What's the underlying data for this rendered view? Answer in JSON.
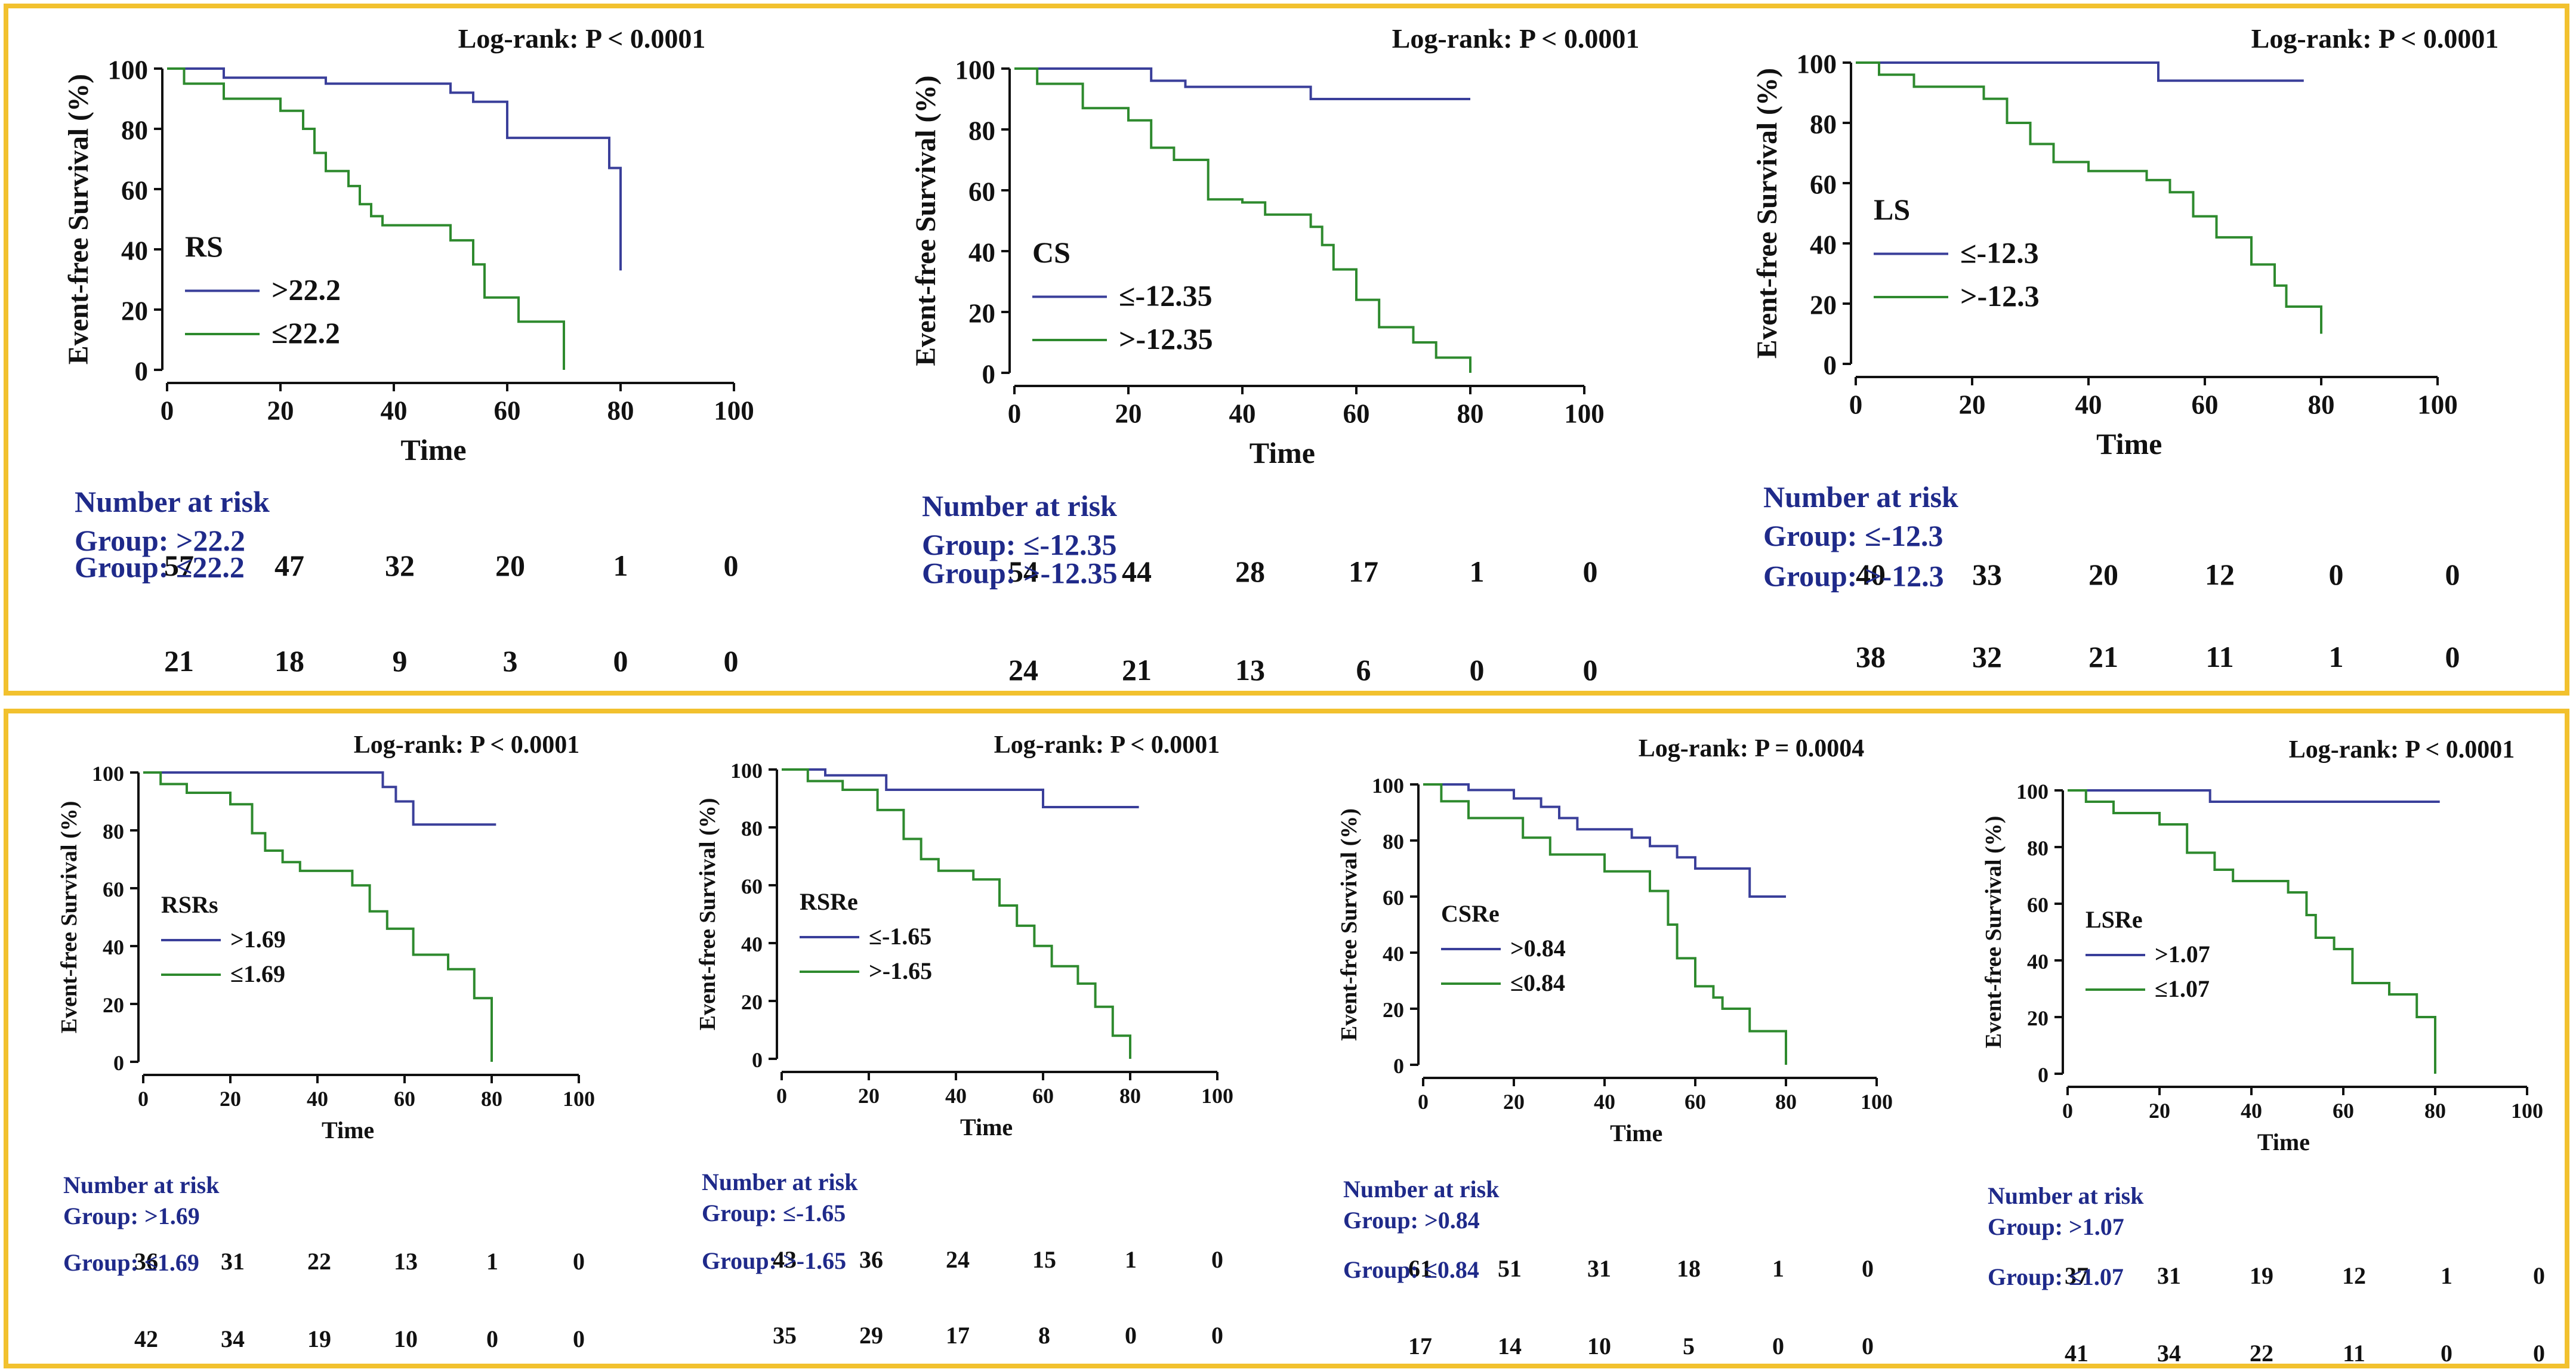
{
  "colors": {
    "frame": "#f2c12e",
    "series_high": "#3a3f9a",
    "series_low": "#2e8a2e",
    "group_text": "#1f2a8a"
  },
  "chart_data": [
    {
      "type": "line",
      "title": "Log-rank: P < 0.0001",
      "xlabel": "Time",
      "ylabel": "Event-free Survival (%)",
      "xlim": [
        0,
        100
      ],
      "ylim": [
        0,
        100
      ],
      "xticks": [
        0,
        20,
        40,
        60,
        80,
        100
      ],
      "yticks": [
        0,
        20,
        40,
        60,
        80,
        100
      ],
      "legend_title": "RS",
      "series": [
        {
          "name": ">22.2",
          "color": "#3a3f9a",
          "x": [
            0,
            10,
            28,
            50,
            54,
            60,
            70,
            78,
            80
          ],
          "y": [
            100,
            97,
            95,
            92,
            89,
            77,
            77,
            67,
            33
          ]
        },
        {
          "name": "≤22.2",
          "color": "#2e8a2e",
          "x": [
            0,
            3,
            10,
            20,
            24,
            26,
            28,
            32,
            34,
            36,
            38,
            50,
            54,
            56,
            62,
            70
          ],
          "y": [
            100,
            95,
            90,
            86,
            80,
            72,
            66,
            61,
            55,
            51,
            48,
            43,
            35,
            24,
            16,
            0
          ]
        }
      ],
      "risk": {
        "header": "Number at risk",
        "groups": [
          {
            "label": "Group: >22.2",
            "counts": [
              57,
              47,
              32,
              20,
              1,
              0
            ]
          },
          {
            "label": "Group: ≤22.2",
            "counts": [
              21,
              18,
              9,
              3,
              0,
              0
            ]
          }
        ]
      }
    },
    {
      "type": "line",
      "title": "Log-rank: P < 0.0001",
      "xlabel": "Time",
      "ylabel": "Event-free Survival (%)",
      "xlim": [
        0,
        100
      ],
      "ylim": [
        0,
        100
      ],
      "xticks": [
        0,
        20,
        40,
        60,
        80,
        100
      ],
      "yticks": [
        0,
        20,
        40,
        60,
        80,
        100
      ],
      "legend_title": "CS",
      "series": [
        {
          "name": "≤-12.35",
          "color": "#3a3f9a",
          "x": [
            0,
            24,
            30,
            52,
            80
          ],
          "y": [
            100,
            96,
            94,
            90,
            90
          ]
        },
        {
          "name": ">-12.35",
          "color": "#2e8a2e",
          "x": [
            0,
            4,
            12,
            20,
            24,
            28,
            34,
            40,
            44,
            52,
            54,
            56,
            60,
            64,
            70,
            74,
            80
          ],
          "y": [
            100,
            95,
            87,
            83,
            74,
            70,
            57,
            56,
            52,
            48,
            42,
            34,
            24,
            15,
            10,
            5,
            0
          ]
        }
      ],
      "risk": {
        "header": "Number at risk",
        "groups": [
          {
            "label": "Group: ≤-12.35",
            "counts": [
              54,
              44,
              28,
              17,
              1,
              0
            ]
          },
          {
            "label": "Group: >-12.35",
            "counts": [
              24,
              21,
              13,
              6,
              0,
              0
            ]
          }
        ]
      }
    },
    {
      "type": "line",
      "title": "Log-rank: P < 0.0001",
      "xlabel": "Time",
      "ylabel": "Event-free Survival (%)",
      "xlim": [
        0,
        100
      ],
      "ylim": [
        0,
        100
      ],
      "xticks": [
        0,
        20,
        40,
        60,
        80,
        100
      ],
      "yticks": [
        0,
        20,
        40,
        60,
        80,
        100
      ],
      "legend_title": "LS",
      "series": [
        {
          "name": "≤-12.3",
          "color": "#3a3f9a",
          "x": [
            0,
            51,
            52,
            77
          ],
          "y": [
            100,
            100,
            94,
            94
          ]
        },
        {
          "name": ">-12.3",
          "color": "#2e8a2e",
          "x": [
            0,
            4,
            10,
            22,
            26,
            30,
            34,
            40,
            50,
            54,
            58,
            62,
            68,
            72,
            74,
            78,
            80
          ],
          "y": [
            100,
            96,
            92,
            88,
            80,
            73,
            67,
            64,
            61,
            57,
            49,
            42,
            33,
            26,
            19,
            19,
            10
          ]
        }
      ],
      "risk": {
        "header": "Number at risk",
        "groups": [
          {
            "label": "Group: ≤-12.3",
            "counts": [
              40,
              33,
              20,
              12,
              0,
              0
            ]
          },
          {
            "label": "Group: >-12.3",
            "counts": [
              38,
              32,
              21,
              11,
              1,
              0
            ]
          }
        ]
      }
    },
    {
      "type": "line",
      "title": "Log-rank: P < 0.0001",
      "xlabel": "Time",
      "ylabel": "Event-free Survival (%)",
      "xlim": [
        0,
        100
      ],
      "ylim": [
        0,
        100
      ],
      "xticks": [
        0,
        20,
        40,
        60,
        80,
        100
      ],
      "yticks": [
        0,
        20,
        40,
        60,
        80,
        100
      ],
      "legend_title": "RSRs",
      "series": [
        {
          "name": ">1.69",
          "color": "#3a3f9a",
          "x": [
            0,
            52,
            55,
            58,
            62,
            81
          ],
          "y": [
            100,
            100,
            95,
            90,
            82,
            82
          ]
        },
        {
          "name": "≤1.69",
          "color": "#2e8a2e",
          "x": [
            0,
            4,
            10,
            20,
            25,
            28,
            32,
            36,
            48,
            52,
            56,
            62,
            70,
            76,
            80
          ],
          "y": [
            100,
            96,
            93,
            89,
            79,
            73,
            69,
            66,
            61,
            52,
            46,
            37,
            32,
            22,
            0
          ]
        }
      ],
      "risk": {
        "header": "Number at risk",
        "groups": [
          {
            "label": "Group: >1.69",
            "counts": [
              36,
              31,
              22,
              13,
              1,
              0
            ]
          },
          {
            "label": "Group: ≤1.69",
            "counts": [
              42,
              34,
              19,
              10,
              0,
              0
            ]
          }
        ]
      }
    },
    {
      "type": "line",
      "title": "Log-rank: P < 0.0001",
      "xlabel": "Time",
      "ylabel": "Event-free Survival (%)",
      "xlim": [
        0,
        100
      ],
      "ylim": [
        0,
        100
      ],
      "xticks": [
        0,
        20,
        40,
        60,
        80,
        100
      ],
      "yticks": [
        0,
        20,
        40,
        60,
        80,
        100
      ],
      "legend_title": "RSRe",
      "series": [
        {
          "name": "≤-1.65",
          "color": "#3a3f9a",
          "x": [
            0,
            10,
            24,
            60,
            82
          ],
          "y": [
            100,
            98,
            93,
            87,
            87
          ]
        },
        {
          "name": ">-1.65",
          "color": "#2e8a2e",
          "x": [
            0,
            6,
            14,
            22,
            28,
            32,
            36,
            44,
            50,
            54,
            58,
            62,
            68,
            72,
            76,
            80
          ],
          "y": [
            100,
            96,
            93,
            86,
            76,
            69,
            65,
            62,
            53,
            46,
            39,
            32,
            26,
            18,
            8,
            0
          ]
        }
      ],
      "risk": {
        "header": "Number at risk",
        "groups": [
          {
            "label": "Group: ≤-1.65",
            "counts": [
              43,
              36,
              24,
              15,
              1,
              0
            ]
          },
          {
            "label": "Group: >-1.65",
            "counts": [
              35,
              29,
              17,
              8,
              0,
              0
            ]
          }
        ]
      }
    },
    {
      "type": "line",
      "title": "Log-rank: P = 0.0004",
      "xlabel": "Time",
      "ylabel": "Event-free Survival (%)",
      "xlim": [
        0,
        100
      ],
      "ylim": [
        0,
        100
      ],
      "xticks": [
        0,
        20,
        40,
        60,
        80,
        100
      ],
      "yticks": [
        0,
        20,
        40,
        60,
        80,
        100
      ],
      "legend_title": "CSRe",
      "series": [
        {
          "name": ">0.84",
          "color": "#3a3f9a",
          "x": [
            0,
            10,
            20,
            26,
            30,
            34,
            46,
            50,
            56,
            60,
            64,
            72,
            80
          ],
          "y": [
            100,
            98,
            95,
            92,
            88,
            84,
            81,
            78,
            74,
            70,
            70,
            60,
            60
          ]
        },
        {
          "name": "≤0.84",
          "color": "#2e8a2e",
          "x": [
            0,
            4,
            10,
            22,
            28,
            40,
            50,
            54,
            56,
            60,
            64,
            66,
            72,
            80
          ],
          "y": [
            100,
            94,
            88,
            81,
            75,
            69,
            62,
            50,
            38,
            28,
            24,
            20,
            12,
            0
          ]
        }
      ],
      "risk": {
        "header": "Number at risk",
        "groups": [
          {
            "label": "Group: >0.84",
            "counts": [
              61,
              51,
              31,
              18,
              1,
              0
            ]
          },
          {
            "label": "Group: ≤0.84",
            "counts": [
              17,
              14,
              10,
              5,
              0,
              0
            ]
          }
        ]
      }
    },
    {
      "type": "line",
      "title": "Log-rank: P < 0.0001",
      "xlabel": "Time",
      "ylabel": "Event-free Survival (%)",
      "xlim": [
        0,
        100
      ],
      "ylim": [
        0,
        100
      ],
      "xticks": [
        0,
        20,
        40,
        60,
        80,
        100
      ],
      "yticks": [
        0,
        20,
        40,
        60,
        80,
        100
      ],
      "legend_title": "LSRe",
      "series": [
        {
          "name": ">1.07",
          "color": "#3a3f9a",
          "x": [
            0,
            30,
            31,
            81
          ],
          "y": [
            100,
            100,
            96,
            96
          ]
        },
        {
          "name": "≤1.07",
          "color": "#2e8a2e",
          "x": [
            0,
            4,
            10,
            20,
            26,
            32,
            36,
            48,
            52,
            54,
            58,
            62,
            70,
            76,
            80
          ],
          "y": [
            100,
            96,
            92,
            88,
            78,
            72,
            68,
            64,
            56,
            48,
            44,
            32,
            28,
            20,
            0
          ]
        }
      ],
      "risk": {
        "header": "Number at risk",
        "groups": [
          {
            "label": "Group: >1.07",
            "counts": [
              37,
              31,
              19,
              12,
              1,
              0
            ]
          },
          {
            "label": "Group: ≤1.07",
            "counts": [
              41,
              34,
              22,
              11,
              0,
              0
            ]
          }
        ]
      }
    }
  ]
}
